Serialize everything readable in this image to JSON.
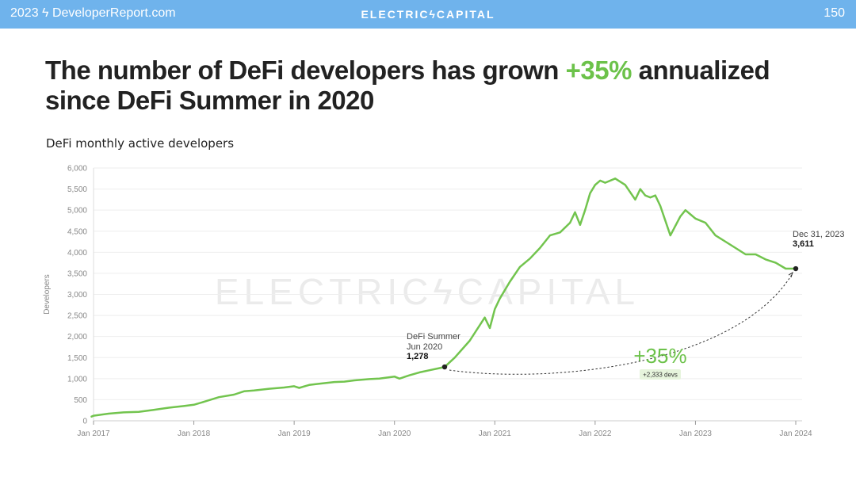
{
  "header": {
    "left": "2023 ϟ DeveloperReport.com",
    "center": "ELECTRICϟCAPITAL",
    "page_number": "150"
  },
  "headline": {
    "part1": "The number of DeFi developers has grown ",
    "highlight": "+35%",
    "part2": " annualized since DeFi Summer in 2020"
  },
  "colors": {
    "accent": "#6cc24a",
    "header": "#6fb3ec"
  },
  "chart_data": {
    "type": "line",
    "title": "DeFi monthly active developers",
    "ylabel": "Developers",
    "xlabel": "",
    "ylim": [
      0,
      6000
    ],
    "yticks": [
      0,
      500,
      1000,
      1500,
      2000,
      2500,
      3000,
      3500,
      4000,
      4500,
      5000,
      5500,
      6000
    ],
    "ytick_labels": [
      "0",
      "500",
      "1,000",
      "1,500",
      "2,000",
      "2,500",
      "3,000",
      "3,500",
      "4,000",
      "4,500",
      "5,000",
      "5,500",
      "6,000"
    ],
    "xlim": [
      2017.0,
      2024.0
    ],
    "xticks": [
      2017,
      2018,
      2019,
      2020,
      2021,
      2022,
      2023,
      2024
    ],
    "xtick_labels": [
      "Jan 2017",
      "Jan 2018",
      "Jan 2019",
      "Jan 2020",
      "Jan 2021",
      "Jan 2022",
      "Jan 2023",
      "Jan 2024"
    ],
    "watermark": "ELECTRICϟCAPITAL",
    "series": [
      {
        "name": "DeFi monthly active developers",
        "x": [
          2016.9,
          2017.0,
          2017.15,
          2017.3,
          2017.45,
          2017.6,
          2017.75,
          2017.9,
          2018.0,
          2018.1,
          2018.25,
          2018.4,
          2018.5,
          2018.6,
          2018.75,
          2018.9,
          2019.0,
          2019.05,
          2019.15,
          2019.25,
          2019.4,
          2019.5,
          2019.6,
          2019.75,
          2019.85,
          2020.0,
          2020.05,
          2020.15,
          2020.25,
          2020.35,
          2020.45,
          2020.5,
          2020.6,
          2020.75,
          2020.9,
          2020.95,
          2021.0,
          2021.05,
          2021.15,
          2021.25,
          2021.35,
          2021.45,
          2021.55,
          2021.65,
          2021.75,
          2021.8,
          2021.85,
          2021.9,
          2021.95,
          2022.0,
          2022.05,
          2022.1,
          2022.2,
          2022.3,
          2022.4,
          2022.45,
          2022.5,
          2022.55,
          2022.6,
          2022.65,
          2022.75,
          2022.85,
          2022.9,
          2022.95,
          2023.0,
          2023.1,
          2023.2,
          2023.3,
          2023.4,
          2023.5,
          2023.6,
          2023.7,
          2023.8,
          2023.9,
          2024.0
        ],
        "values": [
          100,
          120,
          170,
          200,
          210,
          260,
          310,
          350,
          380,
          450,
          560,
          620,
          700,
          720,
          760,
          790,
          820,
          780,
          850,
          880,
          920,
          930,
          960,
          990,
          1000,
          1050,
          1000,
          1080,
          1150,
          1200,
          1250,
          1278,
          1500,
          1900,
          2450,
          2200,
          2650,
          2900,
          3300,
          3650,
          3850,
          4100,
          4400,
          4470,
          4700,
          4950,
          4650,
          5000,
          5400,
          5600,
          5700,
          5650,
          5750,
          5600,
          5250,
          5500,
          5350,
          5300,
          5350,
          5100,
          4400,
          4850,
          5000,
          4900,
          4800,
          4700,
          4400,
          4250,
          4100,
          3950,
          3950,
          3830,
          3750,
          3611,
          3611
        ]
      }
    ],
    "annotations": {
      "start": {
        "label1": "DeFi Summer",
        "label2": "Jun 2020",
        "value_label": "1,278",
        "x": 2020.5,
        "y": 1278
      },
      "end": {
        "label1": "Dec 31, 2023",
        "value_label": "3,611",
        "x": 2024.0,
        "y": 3611
      },
      "growth": {
        "label": "+35%",
        "sublabel": "+2,333 devs"
      }
    }
  }
}
